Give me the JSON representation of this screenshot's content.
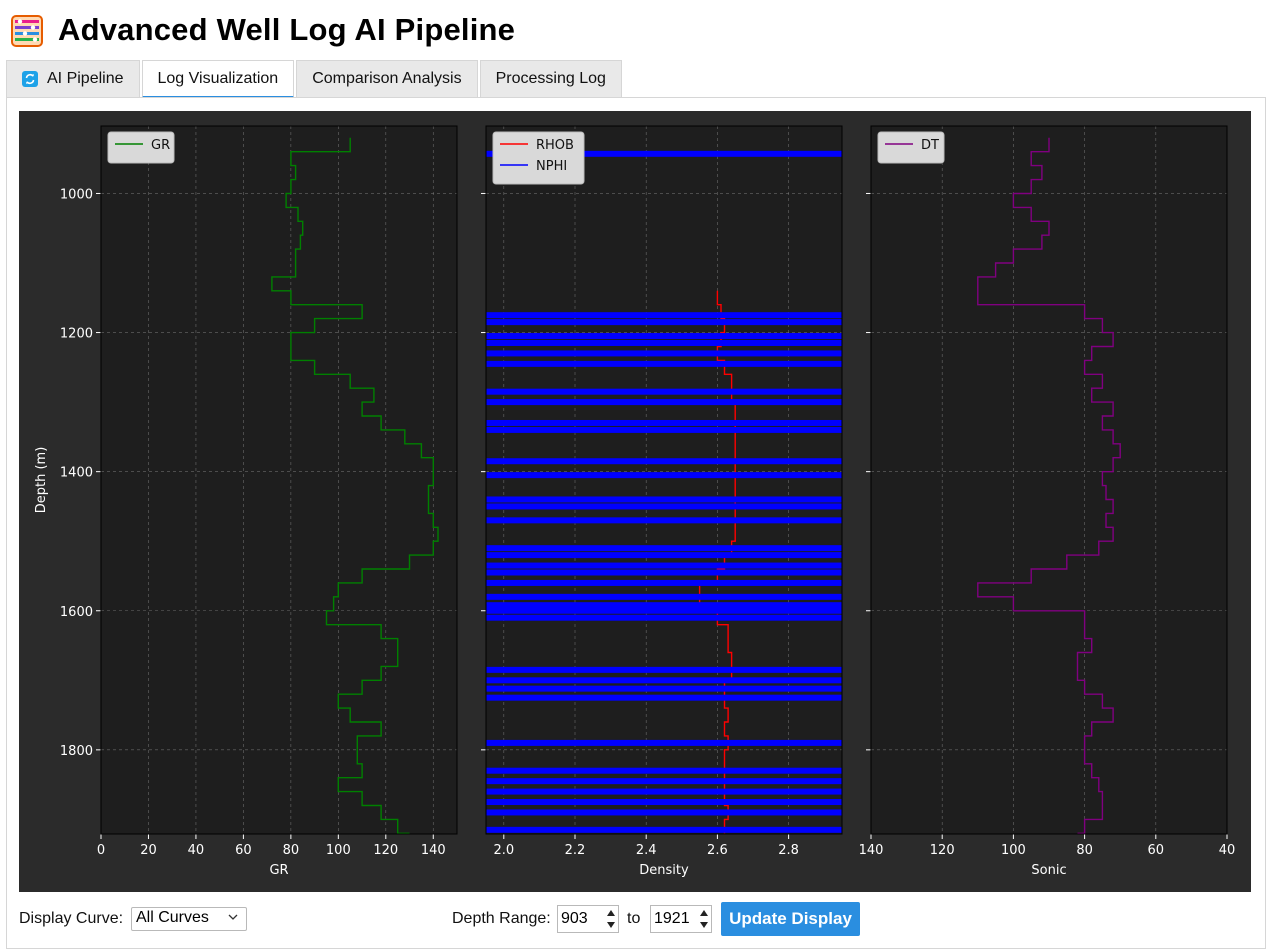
{
  "app": {
    "title": "Advanced Well Log AI Pipeline",
    "icon": "abacus-icon"
  },
  "tabs": [
    {
      "label": "AI Pipeline",
      "icon": "refresh-icon",
      "active": false
    },
    {
      "label": "Log Visualization",
      "active": true
    },
    {
      "label": "Comparison Analysis",
      "active": false
    },
    {
      "label": "Processing Log",
      "active": false
    }
  ],
  "controls": {
    "display_curve_label": "Display Curve:",
    "display_curve_value": "All Curves",
    "depth_range_label": "Depth Range:",
    "depth_from": "903",
    "depth_to_label": "to",
    "depth_to": "1921",
    "update_button": "Update Display"
  },
  "colors": {
    "figure_bg": "#2b2b2b",
    "axes_bg": "#1e1e1e",
    "gr": "#008000",
    "rhob": "#ff0000",
    "nphi": "#0000ff",
    "dt": "#800080",
    "accent": "#2a8ee0"
  },
  "chart_data": [
    {
      "type": "line",
      "ylabel": "Depth (m)",
      "xlabel": "GR",
      "xlim": [
        0,
        150
      ],
      "ylim": [
        1921,
        903
      ],
      "xticks": [
        "0",
        "20",
        "40",
        "60",
        "80",
        "100",
        "120",
        "140"
      ],
      "yticks": [
        "1000",
        "1200",
        "1400",
        "1600",
        "1800"
      ],
      "grid": true,
      "legend": "top-left",
      "series": [
        {
          "name": "GR",
          "color": "#008000",
          "depth": [
            920,
            940,
            960,
            980,
            1000,
            1020,
            1040,
            1060,
            1080,
            1100,
            1120,
            1140,
            1160,
            1180,
            1200,
            1220,
            1240,
            1260,
            1280,
            1300,
            1320,
            1340,
            1360,
            1380,
            1400,
            1420,
            1440,
            1460,
            1480,
            1500,
            1520,
            1540,
            1560,
            1580,
            1600,
            1620,
            1640,
            1660,
            1680,
            1700,
            1720,
            1740,
            1760,
            1780,
            1800,
            1820,
            1840,
            1860,
            1880,
            1900,
            1920
          ],
          "values": [
            105,
            80,
            82,
            80,
            78,
            83,
            85,
            84,
            82,
            82,
            72,
            80,
            110,
            90,
            80,
            80,
            90,
            105,
            115,
            110,
            118,
            128,
            135,
            140,
            140,
            138,
            138,
            140,
            142,
            140,
            130,
            110,
            100,
            98,
            95,
            118,
            125,
            125,
            118,
            110,
            100,
            105,
            118,
            108,
            108,
            110,
            100,
            110,
            118,
            125,
            130
          ]
        }
      ]
    },
    {
      "type": "line",
      "xlabel": "Density",
      "xlim": [
        1.95,
        2.95
      ],
      "ylim": [
        1921,
        903
      ],
      "xticks": [
        "2.0",
        "2.2",
        "2.4",
        "2.6",
        "2.8"
      ],
      "grid": true,
      "legend": "top-left",
      "series": [
        {
          "name": "RHOB",
          "color": "#ff0000",
          "depth": [
            1140,
            1160,
            1180,
            1200,
            1220,
            1240,
            1260,
            1280,
            1300,
            1320,
            1340,
            1360,
            1380,
            1400,
            1420,
            1440,
            1460,
            1480,
            1500,
            1520,
            1540,
            1560,
            1580,
            1600,
            1620,
            1640,
            1660,
            1680,
            1700,
            1720,
            1740,
            1760,
            1780,
            1800,
            1820,
            1840,
            1860,
            1880,
            1900,
            1920
          ],
          "values": [
            2.6,
            2.61,
            2.62,
            2.61,
            2.6,
            2.62,
            2.64,
            2.64,
            2.65,
            2.65,
            2.65,
            2.65,
            2.65,
            2.65,
            2.65,
            2.65,
            2.65,
            2.65,
            2.64,
            2.62,
            2.6,
            2.55,
            2.55,
            2.6,
            2.63,
            2.63,
            2.64,
            2.64,
            2.62,
            2.62,
            2.63,
            2.62,
            2.63,
            2.62,
            2.62,
            2.62,
            2.62,
            2.63,
            2.62,
            2.62
          ]
        },
        {
          "name": "NPHI",
          "color": "#0000ff",
          "depth": [
            943,
            1175,
            1185,
            1205,
            1215,
            1230,
            1245,
            1285,
            1300,
            1330,
            1340,
            1385,
            1405,
            1440,
            1450,
            1470,
            1510,
            1520,
            1535,
            1545,
            1560,
            1580,
            1592,
            1600,
            1610,
            1685,
            1700,
            1712,
            1725,
            1790,
            1830,
            1845,
            1860,
            1875,
            1890,
            1915
          ],
          "values": [
            2.0,
            2.0,
            2.0,
            2.0,
            2.0,
            2.0,
            2.0,
            2.0,
            2.0,
            2.0,
            2.0,
            2.0,
            2.0,
            2.0,
            2.0,
            2.0,
            2.0,
            2.0,
            2.0,
            2.0,
            2.0,
            2.0,
            2.0,
            2.0,
            2.0,
            2.0,
            2.0,
            2.0,
            2.0,
            2.0,
            2.0,
            2.0,
            2.0,
            2.0,
            2.0,
            2.0
          ]
        }
      ]
    },
    {
      "type": "line",
      "xlabel": "Sonic",
      "xlim": [
        140,
        40
      ],
      "ylim": [
        1921,
        903
      ],
      "xticks": [
        "140",
        "120",
        "100",
        "80",
        "60",
        "40"
      ],
      "grid": true,
      "legend": "top-left",
      "series": [
        {
          "name": "DT",
          "color": "#800080",
          "depth": [
            920,
            940,
            960,
            980,
            1000,
            1020,
            1040,
            1060,
            1080,
            1100,
            1120,
            1140,
            1160,
            1180,
            1200,
            1220,
            1240,
            1260,
            1280,
            1300,
            1320,
            1340,
            1360,
            1380,
            1400,
            1420,
            1440,
            1460,
            1480,
            1500,
            1520,
            1540,
            1560,
            1580,
            1600,
            1620,
            1640,
            1660,
            1680,
            1700,
            1720,
            1740,
            1760,
            1780,
            1800,
            1820,
            1840,
            1860,
            1880,
            1900,
            1920
          ],
          "values": [
            90,
            95,
            92,
            95,
            100,
            95,
            90,
            92,
            100,
            105,
            110,
            110,
            80,
            75,
            72,
            78,
            80,
            75,
            78,
            72,
            75,
            72,
            70,
            72,
            75,
            74,
            72,
            74,
            72,
            76,
            85,
            95,
            110,
            100,
            80,
            80,
            78,
            82,
            82,
            80,
            75,
            72,
            78,
            80,
            80,
            78,
            76,
            75,
            75,
            80,
            82
          ]
        }
      ]
    }
  ]
}
